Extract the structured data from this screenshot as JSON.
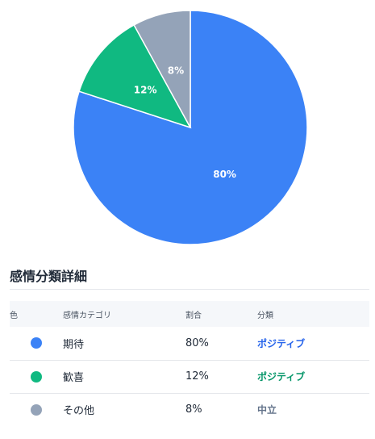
{
  "chart_data": {
    "type": "pie",
    "slices": [
      {
        "label": "期待",
        "value": 80,
        "display": "80%",
        "color": "#3b82f6"
      },
      {
        "label": "歓喜",
        "value": 12,
        "display": "12%",
        "color": "#10b981"
      },
      {
        "label": "その他",
        "value": 8,
        "display": "8%",
        "color": "#94a3b8"
      }
    ],
    "start_angle": "top",
    "direction": "clockwise"
  },
  "section": {
    "title": "感情分類詳細"
  },
  "table": {
    "headers": {
      "color": "色",
      "category": "感情カテゴリ",
      "ratio": "割合",
      "classification": "分類"
    },
    "rows": [
      {
        "color": "#3b82f6",
        "category": "期待",
        "ratio": "80%",
        "classification": "ポジティブ",
        "classification_color": "#2563eb"
      },
      {
        "color": "#10b981",
        "category": "歓喜",
        "ratio": "12%",
        "classification": "ポジティブ",
        "classification_color": "#059669"
      },
      {
        "color": "#94a3b8",
        "category": "その他",
        "ratio": "8%",
        "classification": "中立",
        "classification_color": "#64748b"
      }
    ]
  }
}
